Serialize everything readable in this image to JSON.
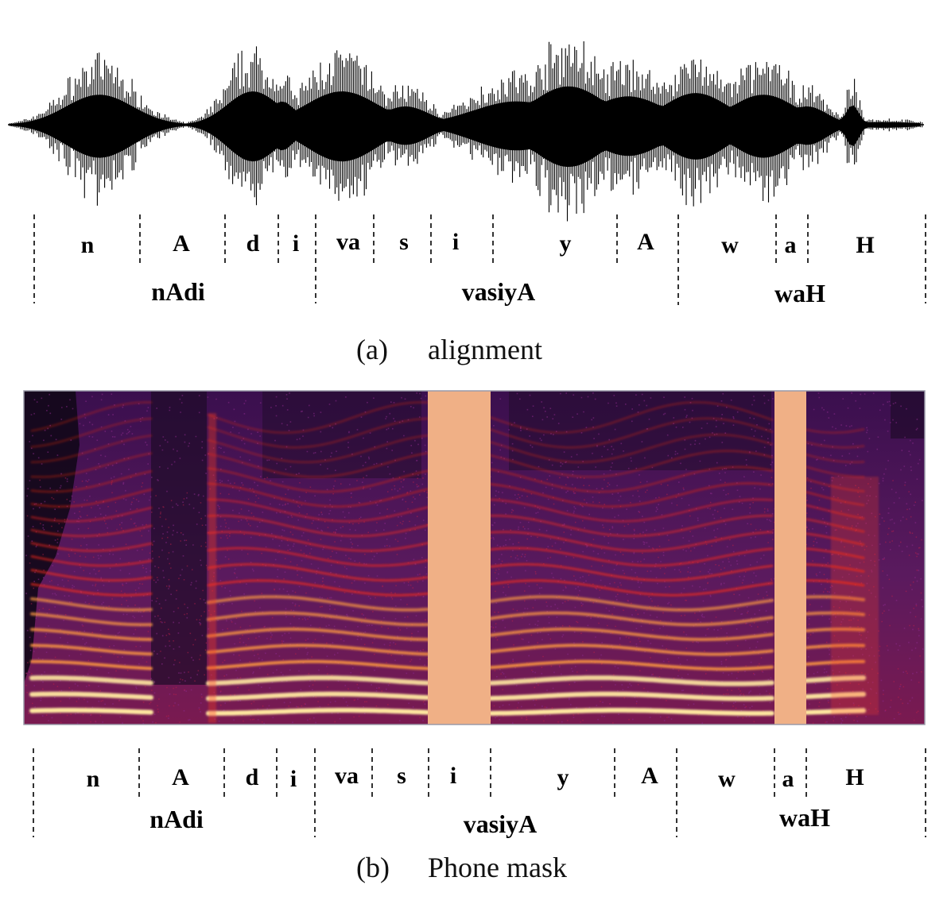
{
  "panel_a": {
    "caption_label": "(a)",
    "caption_text": "alignment",
    "phones": [
      "n",
      "A",
      "d",
      "i",
      "va",
      "s",
      "i",
      "y",
      "A",
      "w",
      "a",
      "H"
    ],
    "words": [
      "nAdi",
      "vasiyA",
      "waH"
    ]
  },
  "panel_b": {
    "caption_label": "(b)",
    "caption_text": "Phone mask",
    "phones": [
      "n",
      "A",
      "d",
      "i",
      "va",
      "s",
      "i",
      "y",
      "A",
      "w",
      "a",
      "H"
    ],
    "words": [
      "nAdi",
      "vasiyA",
      "waH"
    ],
    "masked_phones": [
      "i",
      "a"
    ]
  },
  "colors": {
    "mask": "#f0b086",
    "spectrogram_background": "#2a0a3a",
    "harmonic_high": "#ffe8a0",
    "harmonic_mid": "#ff2a10"
  }
}
